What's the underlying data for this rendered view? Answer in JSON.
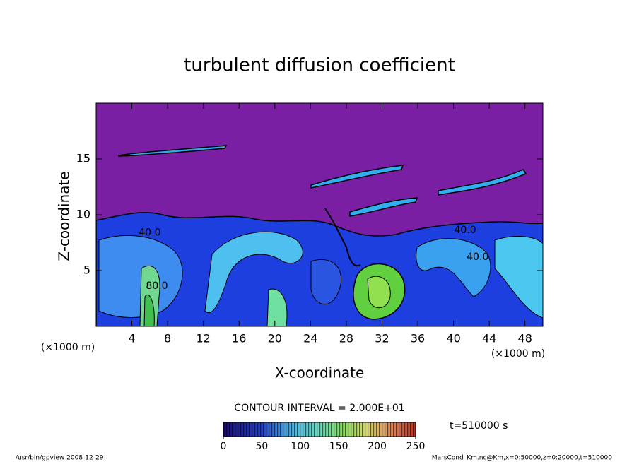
{
  "chart_data": {
    "type": "contour",
    "title": "turbulent diffusion coefficient",
    "xlabel": "X-coordinate",
    "ylabel": "Z-coordinate",
    "x_unit": "(×1000 m)",
    "y_unit": "(×1000 m)",
    "xlim": [
      0,
      50
    ],
    "ylim": [
      0,
      20
    ],
    "xticks": [
      4,
      8,
      12,
      16,
      20,
      24,
      28,
      32,
      36,
      40,
      44,
      48
    ],
    "yticks": [
      5,
      10,
      15
    ],
    "contour_labels": [
      {
        "text": "40.0",
        "x": 6,
        "z": 8.4
      },
      {
        "text": "80.0",
        "x": 6.8,
        "z": 3.6
      },
      {
        "text": "40.0",
        "x": 41.3,
        "z": 8.6
      },
      {
        "text": "40.0",
        "x": 42.7,
        "z": 6.2
      }
    ],
    "contour_interval": "CONTOUR INTERVAL = 2.000E+01",
    "colorbar": {
      "lim": [
        0,
        250
      ],
      "ticks": [
        0,
        50,
        100,
        150,
        200,
        250
      ]
    },
    "time_label": "t=510000 s",
    "footer_left": "/usr/bin/gpview  2008-12-29",
    "footer_right": "MarsCond_Km.nc@Km,x=0:50000,z=0:20000,t=510000"
  }
}
